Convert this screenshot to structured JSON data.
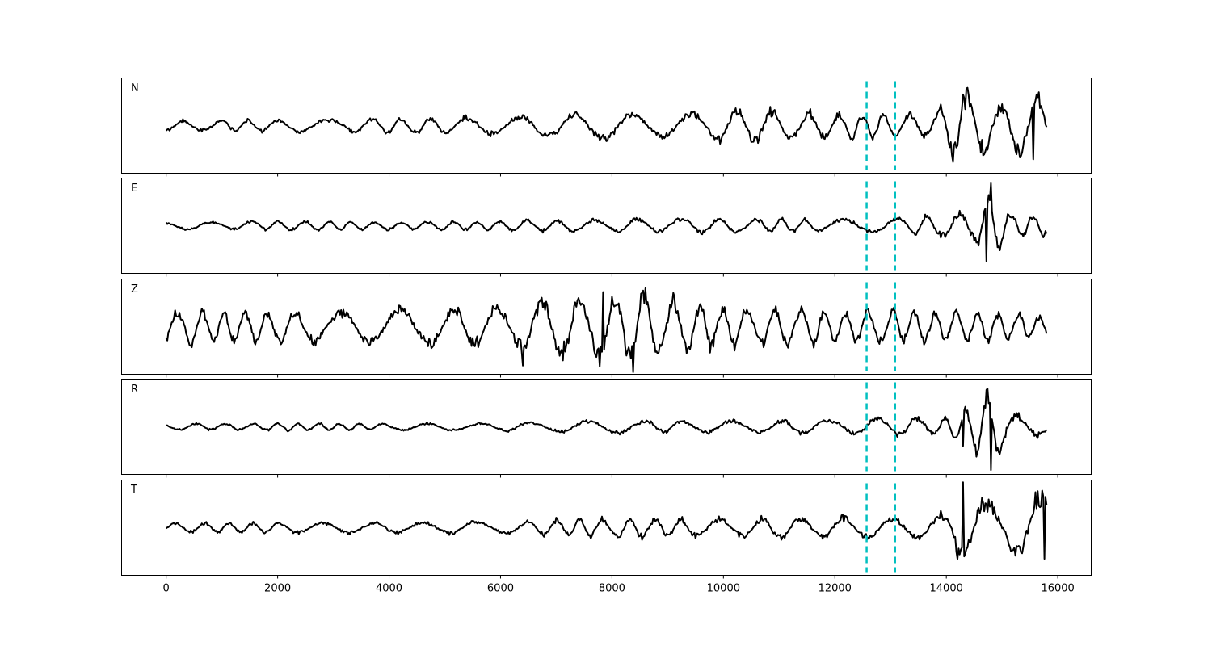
{
  "chart_data": {
    "type": "line",
    "xlim": [
      -800,
      16600
    ],
    "x_ticks": [
      0,
      2000,
      4000,
      6000,
      8000,
      10000,
      12000,
      14000,
      16000
    ],
    "x_tick_labels": [
      "0",
      "2000",
      "4000",
      "6000",
      "8000",
      "10000",
      "12000",
      "14000",
      "16000"
    ],
    "n_samples": 15800,
    "vertical_markers": [
      12570,
      13080
    ],
    "colors": {
      "trace": "#000000",
      "marker": "#00bfbf"
    },
    "grid": false,
    "legend": "none",
    "panels": [
      {
        "label": "N",
        "ylim": [
          -1.1,
          1.1
        ],
        "envelope": [
          [
            0,
            0.12
          ],
          [
            2000,
            0.15
          ],
          [
            4000,
            0.18
          ],
          [
            6000,
            0.22
          ],
          [
            7800,
            0.35
          ],
          [
            9000,
            0.28
          ],
          [
            10500,
            0.42
          ],
          [
            12000,
            0.3
          ],
          [
            13000,
            0.28
          ],
          [
            13800,
            0.3
          ],
          [
            14200,
            0.9
          ],
          [
            14500,
            0.7
          ],
          [
            15000,
            0.5
          ],
          [
            15500,
            0.9
          ],
          [
            15800,
            0.6
          ]
        ],
        "spikes": [
          {
            "x": 14300,
            "y": -0.98
          },
          {
            "x": 14310,
            "y": 0.72
          },
          {
            "x": 15620,
            "y": 0.72
          },
          {
            "x": 15560,
            "y": -0.78
          }
        ]
      },
      {
        "label": "E",
        "ylim": [
          -1.1,
          1.1
        ],
        "envelope": [
          [
            0,
            0.08
          ],
          [
            2000,
            0.12
          ],
          [
            4000,
            0.1
          ],
          [
            6000,
            0.12
          ],
          [
            8000,
            0.16
          ],
          [
            10000,
            0.18
          ],
          [
            12000,
            0.15
          ],
          [
            13000,
            0.18
          ],
          [
            14000,
            0.28
          ],
          [
            14500,
            0.4
          ],
          [
            14800,
            0.9
          ],
          [
            15200,
            0.3
          ],
          [
            15800,
            0.25
          ]
        ],
        "spikes": [
          {
            "x": 14800,
            "y": 0.98
          },
          {
            "x": 14730,
            "y": -0.82
          }
        ]
      },
      {
        "label": "Z",
        "ylim": [
          -1.1,
          1.1
        ],
        "envelope": [
          [
            0,
            0.42
          ],
          [
            2000,
            0.38
          ],
          [
            4000,
            0.45
          ],
          [
            6000,
            0.5
          ],
          [
            7500,
            0.8
          ],
          [
            8500,
            0.85
          ],
          [
            10000,
            0.5
          ],
          [
            11000,
            0.45
          ],
          [
            12000,
            0.4
          ],
          [
            13000,
            0.4
          ],
          [
            14500,
            0.35
          ],
          [
            15800,
            0.3
          ]
        ],
        "spikes": [
          {
            "x": 7850,
            "y": 0.8
          },
          {
            "x": 8380,
            "y": -1.05
          },
          {
            "x": 8540,
            "y": 0.78
          },
          {
            "x": 6400,
            "y": -0.9
          }
        ]
      },
      {
        "label": "R",
        "ylim": [
          -1.1,
          1.1
        ],
        "envelope": [
          [
            0,
            0.08
          ],
          [
            2000,
            0.09
          ],
          [
            4000,
            0.08
          ],
          [
            6000,
            0.1
          ],
          [
            8000,
            0.16
          ],
          [
            10000,
            0.15
          ],
          [
            12000,
            0.18
          ],
          [
            13000,
            0.22
          ],
          [
            14000,
            0.22
          ],
          [
            14500,
            0.55
          ],
          [
            14800,
            0.9
          ],
          [
            15200,
            0.3
          ],
          [
            15800,
            0.2
          ]
        ],
        "spikes": [
          {
            "x": 14720,
            "y": 0.85
          },
          {
            "x": 14800,
            "y": -1.0
          },
          {
            "x": 14300,
            "y": -0.45
          }
        ]
      },
      {
        "label": "T",
        "ylim": [
          -1.1,
          1.1
        ],
        "envelope": [
          [
            0,
            0.12
          ],
          [
            2000,
            0.13
          ],
          [
            4000,
            0.14
          ],
          [
            6000,
            0.16
          ],
          [
            7000,
            0.2
          ],
          [
            8000,
            0.25
          ],
          [
            10000,
            0.22
          ],
          [
            11500,
            0.28
          ],
          [
            13000,
            0.25
          ],
          [
            14000,
            0.35
          ],
          [
            14300,
            0.95
          ],
          [
            15000,
            0.5
          ],
          [
            15600,
            0.95
          ],
          [
            15800,
            0.7
          ]
        ],
        "spikes": [
          {
            "x": 14300,
            "y": 1.05
          },
          {
            "x": 15600,
            "y": 0.82
          },
          {
            "x": 15760,
            "y": -0.72
          }
        ]
      }
    ]
  }
}
